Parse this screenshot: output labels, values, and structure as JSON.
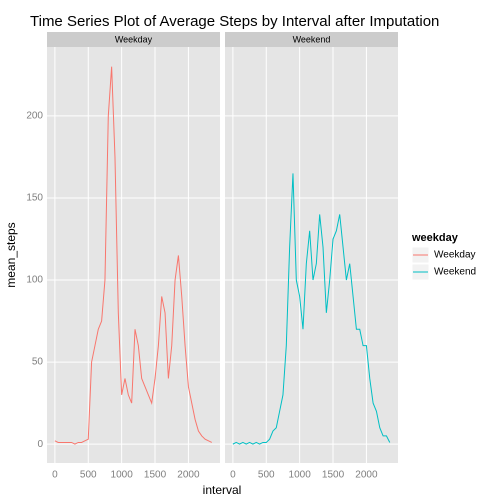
{
  "chart_data": {
    "type": "line",
    "title": "Time Series Plot of Average Steps by Interval after Imputation",
    "x_label": "interval",
    "y_label": "mean_steps",
    "legend_title": "weekday",
    "facet": true,
    "x": [
      0,
      50,
      100,
      150,
      200,
      250,
      300,
      350,
      400,
      450,
      500,
      550,
      600,
      650,
      700,
      750,
      800,
      850,
      900,
      950,
      1000,
      1050,
      1100,
      1150,
      1200,
      1250,
      1300,
      1350,
      1400,
      1450,
      1500,
      1550,
      1600,
      1650,
      1700,
      1750,
      1800,
      1850,
      1900,
      1950,
      2000,
      2050,
      2100,
      2150,
      2200,
      2250,
      2300,
      2350
    ],
    "series": [
      {
        "name": "Weekday",
        "color": "#F8766D",
        "values": [
          2,
          1,
          1,
          1,
          1,
          1,
          0,
          1,
          1,
          2,
          3,
          50,
          60,
          70,
          75,
          100,
          200,
          230,
          175,
          80,
          30,
          40,
          30,
          25,
          70,
          60,
          40,
          35,
          30,
          25,
          40,
          60,
          90,
          80,
          40,
          60,
          100,
          115,
          90,
          60,
          35,
          25,
          15,
          8,
          5,
          3,
          2,
          1
        ]
      },
      {
        "name": "Weekend",
        "color": "#00BFC4",
        "values": [
          0,
          1,
          0,
          1,
          0,
          1,
          0,
          1,
          0,
          1,
          1,
          3,
          8,
          10,
          20,
          30,
          60,
          120,
          165,
          100,
          90,
          70,
          110,
          130,
          100,
          110,
          140,
          120,
          80,
          100,
          125,
          130,
          140,
          120,
          100,
          110,
          90,
          70,
          70,
          60,
          60,
          40,
          25,
          20,
          10,
          5,
          5,
          1
        ]
      }
    ],
    "xlim": [
      -118,
      2473
    ],
    "ylim": [
      -11.5,
      242
    ],
    "xticks": [
      0,
      500,
      1000,
      1500,
      2000
    ],
    "yticks": [
      0,
      50,
      100,
      150,
      200
    ],
    "grid": true,
    "legend": "right"
  }
}
